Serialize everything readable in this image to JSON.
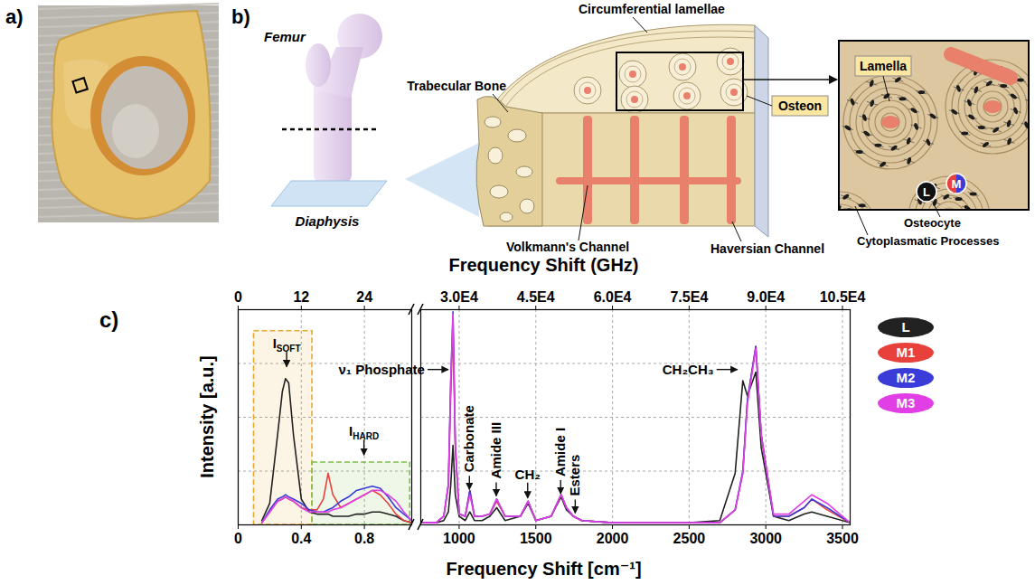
{
  "panels": {
    "a": {
      "letter": "a)"
    },
    "b": {
      "letter": "b)",
      "labels": {
        "femur": "Femur",
        "diaphysis": "Diaphysis",
        "circumferential": "Circumferential lamellae",
        "trabecular": "Trabecular Bone",
        "osteon": "Osteon",
        "volkmann": "Volkmann's Channel",
        "haversian": "Haversian Channel",
        "lamella": "Lamella",
        "osteocyte": "Osteocyte",
        "processes": "Cytoplasmatic Processes",
        "marker_l": "L",
        "marker_m": "M"
      }
    },
    "c": {
      "letter": "c)"
    }
  },
  "chart_data": {
    "type": "line",
    "xlabel": "Frequency Shift [cm⁻¹]",
    "x2label": "Frequency Shift (GHz)",
    "ylabel": "Intensity [a.u.]",
    "tick_labels": "x",
    "grid": true,
    "legend": "right",
    "ylim": [
      0,
      1
    ],
    "yticks": [
      0,
      0.25,
      0.5,
      0.75,
      1
    ],
    "series": [
      {
        "name": "L",
        "color": "#222222"
      },
      {
        "name": "M1",
        "color": "#e8413c"
      },
      {
        "name": "M2",
        "color": "#3b3bd9"
      },
      {
        "name": "M3",
        "color": "#e23ee6"
      }
    ],
    "panels": [
      {
        "xlim": [
          0,
          1.1
        ],
        "xticks": [
          0,
          0.4,
          0.8
        ],
        "x2lim": [
          0,
          33
        ],
        "x2ticks": [
          0,
          12,
          24
        ],
        "x": [
          0.15,
          0.2,
          0.25,
          0.28,
          0.3,
          0.32,
          0.35,
          0.4,
          0.45,
          0.5,
          0.54,
          0.57,
          0.6,
          0.65,
          0.7,
          0.75,
          0.8,
          0.85,
          0.9,
          0.95,
          1.0,
          1.05,
          1.1
        ],
        "values": [
          [
            0.02,
            0.1,
            0.42,
            0.62,
            0.68,
            0.66,
            0.42,
            0.12,
            0.06,
            0.05,
            0.05,
            0.05,
            0.04,
            0.04,
            0.04,
            0.05,
            0.05,
            0.06,
            0.06,
            0.05,
            0.04,
            0.02,
            0.01
          ],
          [
            0.01,
            0.06,
            0.11,
            0.12,
            0.13,
            0.12,
            0.11,
            0.08,
            0.07,
            0.07,
            0.12,
            0.24,
            0.14,
            0.08,
            0.1,
            0.12,
            0.14,
            0.16,
            0.14,
            0.1,
            0.05,
            0.02,
            0.01
          ],
          [
            0.01,
            0.07,
            0.12,
            0.13,
            0.14,
            0.13,
            0.12,
            0.1,
            0.07,
            0.06,
            0.06,
            0.07,
            0.08,
            0.11,
            0.13,
            0.16,
            0.17,
            0.18,
            0.17,
            0.13,
            0.08,
            0.05,
            0.02
          ],
          [
            0.01,
            0.06,
            0.11,
            0.12,
            0.13,
            0.12,
            0.11,
            0.08,
            0.06,
            0.06,
            0.06,
            0.06,
            0.07,
            0.08,
            0.1,
            0.12,
            0.14,
            0.16,
            0.16,
            0.14,
            0.11,
            0.06,
            0.02
          ]
        ],
        "regions": [
          {
            "x": [
              0.1,
              0.47
            ],
            "y": [
              0,
              0.9
            ],
            "color": "#e8a92e"
          },
          {
            "x": [
              0.47,
              1.09
            ],
            "y": [
              0,
              0.29
            ],
            "color": "#7cc04a"
          }
        ],
        "annotations": [
          {
            "text": "I",
            "subscript": "SOFT",
            "x": 0.31,
            "y": 0.72
          },
          {
            "text": "I",
            "subscript": "HARD",
            "x": 0.8,
            "y": 0.31
          }
        ],
        "vertical_annotations": [],
        "side_annotations": []
      },
      {
        "xlim": [
          750,
          3550
        ],
        "xticks": [
          1000,
          1500,
          2000,
          2500,
          3000,
          3500
        ],
        "x2lim": [
          22500,
          106500
        ],
        "x2ticks": [
          {
            "value": 30000,
            "label": "3.0E4"
          },
          {
            "value": 45000,
            "label": "4.5E4"
          },
          {
            "value": 60000,
            "label": "6.0E4"
          },
          {
            "value": 75000,
            "label": "7.5E4"
          },
          {
            "value": 90000,
            "label": "9.0E4"
          },
          {
            "value": 105000,
            "label": "10.5E4"
          }
        ],
        "x": [
          750,
          850,
          900,
          930,
          945,
          960,
          975,
          1000,
          1040,
          1070,
          1100,
          1150,
          1200,
          1245,
          1300,
          1400,
          1450,
          1500,
          1600,
          1665,
          1700,
          1745,
          1800,
          2000,
          2500,
          2700,
          2800,
          2850,
          2880,
          2935,
          2970,
          3050,
          3150,
          3250,
          3300,
          3400,
          3550
        ],
        "values": [
          [
            0.01,
            0.01,
            0.02,
            0.06,
            0.18,
            0.37,
            0.14,
            0.04,
            0.02,
            0.06,
            0.02,
            0.02,
            0.04,
            0.08,
            0.02,
            0.04,
            0.1,
            0.02,
            0.04,
            0.13,
            0.07,
            0.04,
            0.02,
            0.01,
            0.01,
            0.02,
            0.24,
            0.67,
            0.6,
            0.71,
            0.36,
            0.04,
            0.02,
            0.05,
            0.06,
            0.04,
            0.01
          ],
          [
            0.01,
            0.01,
            0.04,
            0.18,
            0.6,
            0.92,
            0.36,
            0.05,
            0.04,
            0.16,
            0.04,
            0.04,
            0.05,
            0.11,
            0.04,
            0.04,
            0.11,
            0.02,
            0.04,
            0.14,
            0.08,
            0.04,
            0.02,
            0.01,
            0.01,
            0.01,
            0.07,
            0.24,
            0.58,
            0.83,
            0.42,
            0.04,
            0.04,
            0.08,
            0.12,
            0.07,
            0.01
          ],
          [
            0.01,
            0.01,
            0.04,
            0.19,
            0.66,
            0.99,
            0.38,
            0.05,
            0.04,
            0.16,
            0.04,
            0.04,
            0.05,
            0.12,
            0.04,
            0.04,
            0.11,
            0.02,
            0.04,
            0.14,
            0.08,
            0.04,
            0.02,
            0.01,
            0.01,
            0.01,
            0.07,
            0.25,
            0.58,
            0.83,
            0.42,
            0.04,
            0.04,
            0.08,
            0.12,
            0.08,
            0.01
          ],
          [
            0.01,
            0.01,
            0.04,
            0.19,
            0.66,
            0.98,
            0.38,
            0.05,
            0.04,
            0.14,
            0.04,
            0.04,
            0.05,
            0.12,
            0.04,
            0.04,
            0.11,
            0.02,
            0.04,
            0.14,
            0.08,
            0.04,
            0.02,
            0.01,
            0.01,
            0.01,
            0.07,
            0.24,
            0.56,
            0.82,
            0.42,
            0.05,
            0.05,
            0.11,
            0.14,
            0.1,
            0.01
          ]
        ],
        "regions": [],
        "annotations": [
          {
            "text": "CH₂",
            "x": 1450,
            "y": 0.11
          }
        ],
        "vertical_annotations": [
          {
            "text": "Carbonate",
            "x": 1070,
            "y": 0.15
          },
          {
            "text": "Amide III",
            "x": 1245,
            "y": 0.12
          },
          {
            "text": "Amide I",
            "x": 1665,
            "y": 0.13
          },
          {
            "text": "Esters",
            "x": 1760,
            "y": 0.04
          }
        ],
        "side_annotations": [
          {
            "text": "ν₁ Phosphate",
            "x": 950,
            "y": 0.72
          },
          {
            "text": "CH₂CH₃",
            "x": 2835,
            "y": 0.72
          }
        ]
      }
    ]
  }
}
